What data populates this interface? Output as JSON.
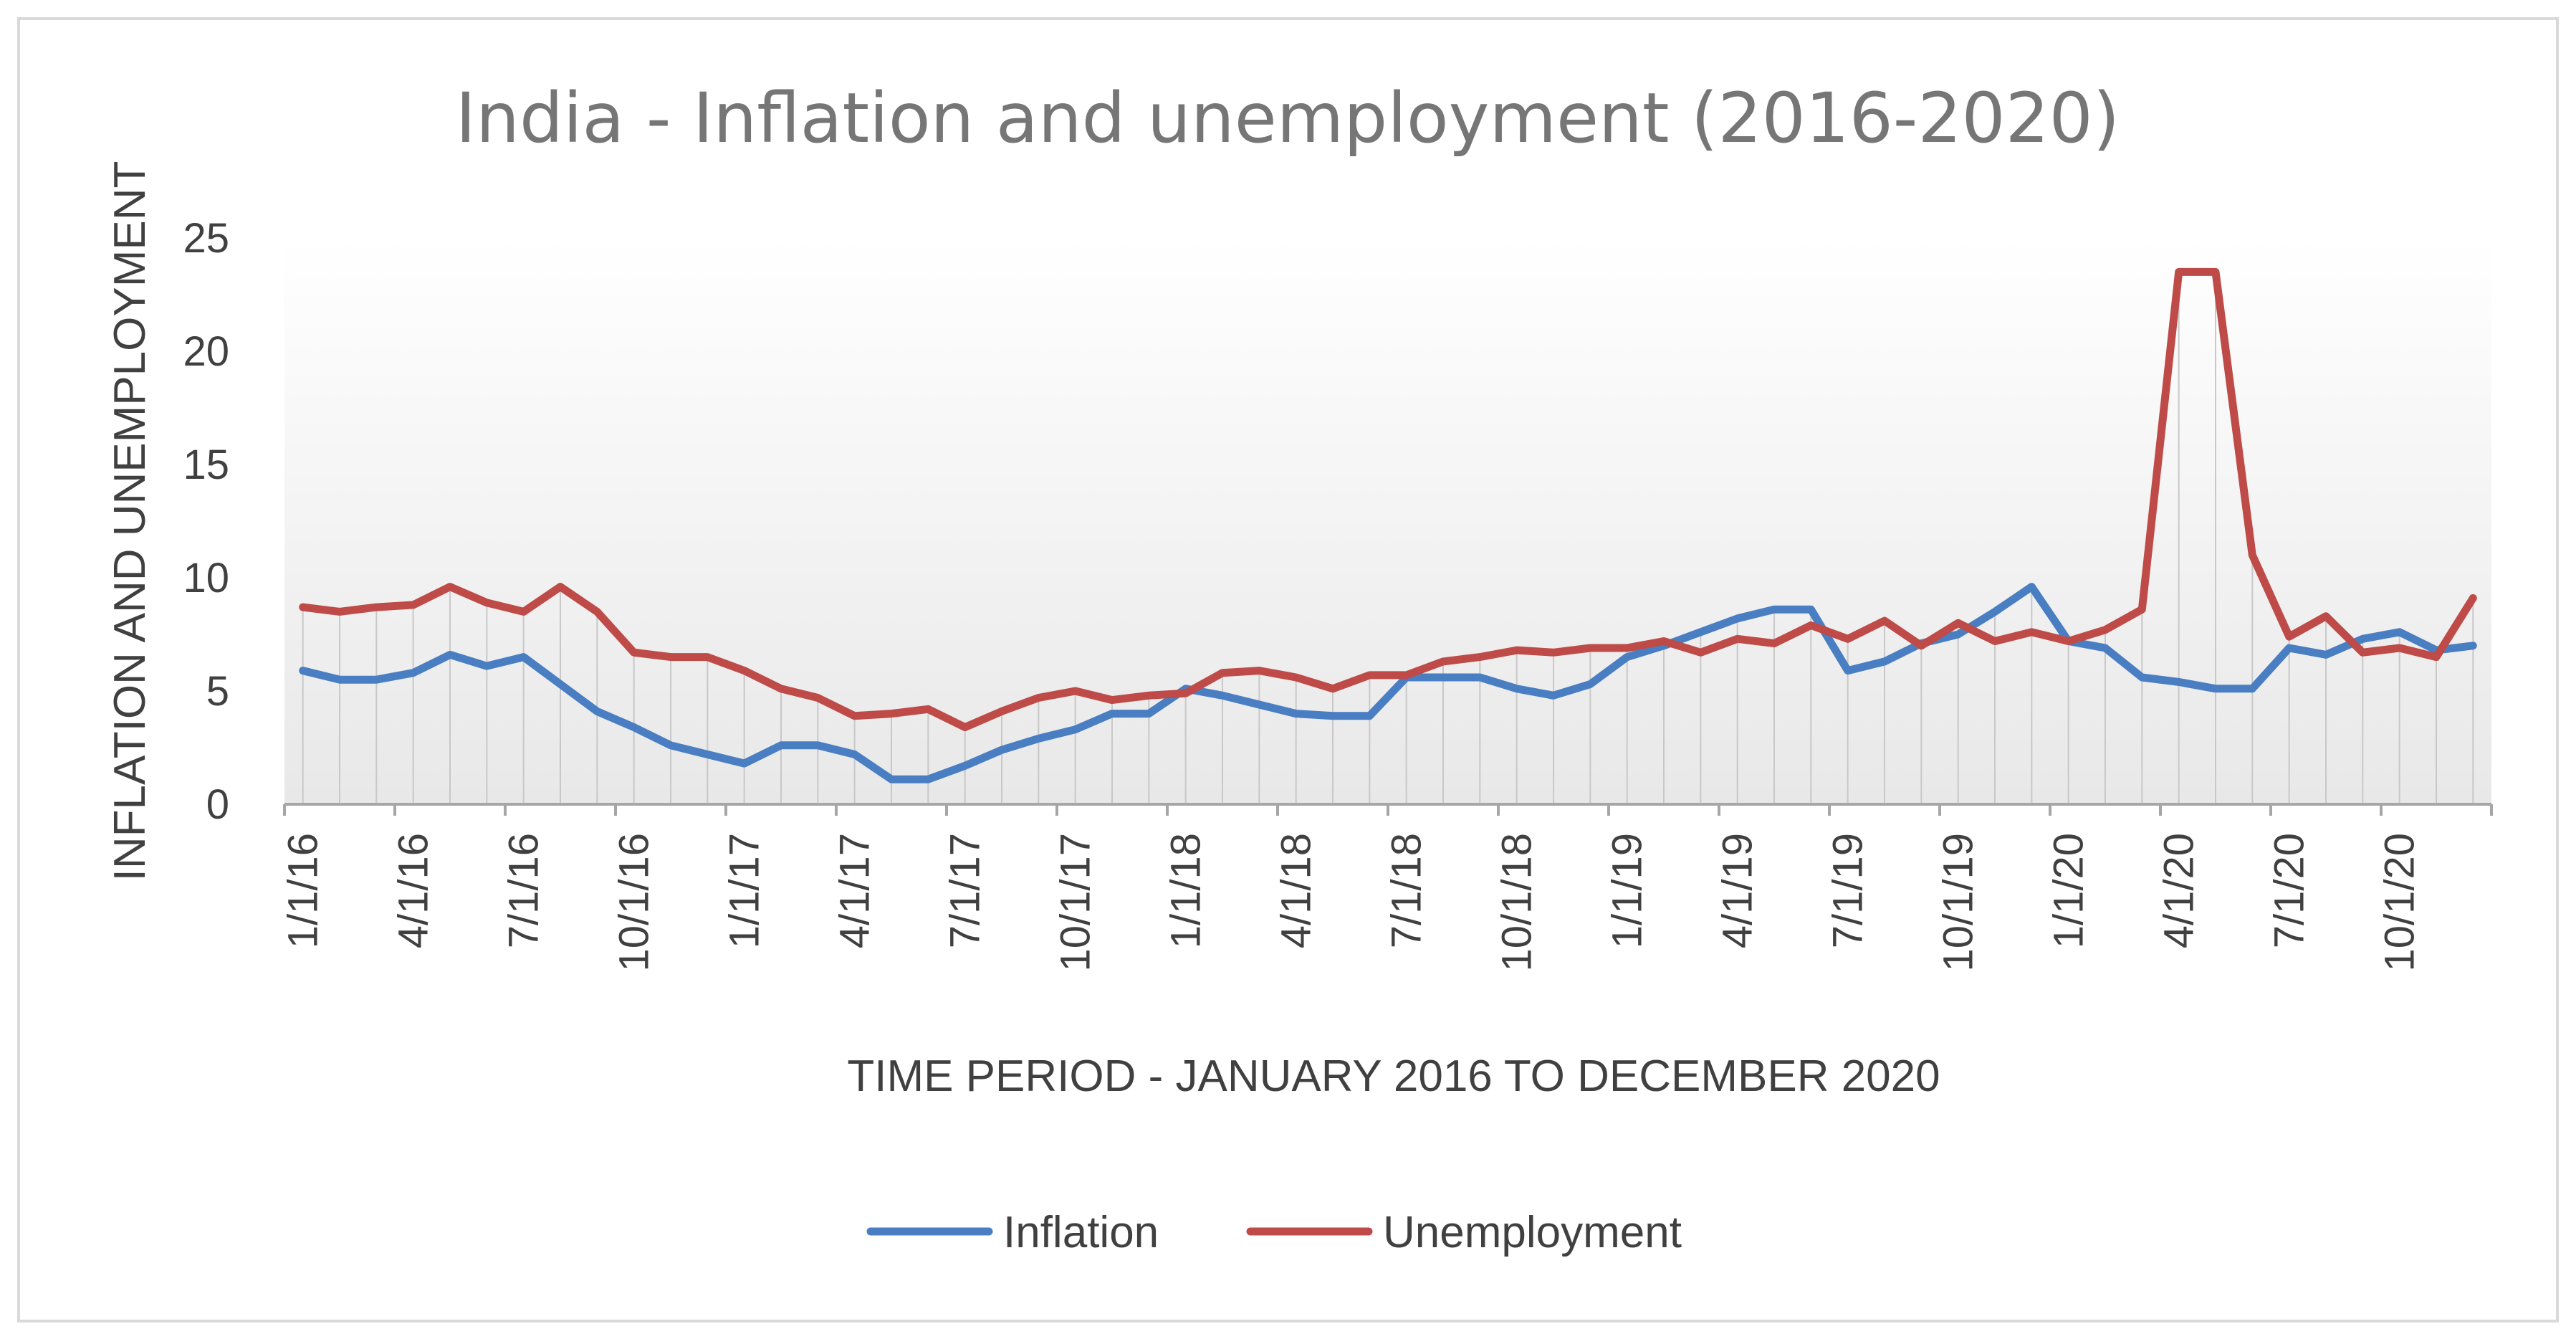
{
  "chart_data": {
    "type": "line",
    "title": "India - Inflation and unemployment  (2016-2020)",
    "xlabel": "TIME PERIOD - JANUARY 2016 TO DECEMBER 2020",
    "ylabel": "INFLATION AND UNEMPLOYMENT",
    "ylim": [
      0,
      25
    ],
    "yticks": [
      "0",
      "5",
      "10",
      "15",
      "20",
      "25"
    ],
    "xtick_labels": [
      "1/1/16",
      "4/1/16",
      "7/1/16",
      "10/1/16",
      "1/1/17",
      "4/1/17",
      "7/1/17",
      "10/1/17",
      "1/1/18",
      "4/1/18",
      "7/1/18",
      "10/1/18",
      "1/1/19",
      "4/1/19",
      "7/1/19",
      "10/1/19",
      "1/1/20",
      "4/1/20",
      "7/1/20",
      "10/1/20"
    ],
    "x_start": "2016-01",
    "x_count": 60,
    "grid": "vertical drop lines",
    "legend_position": "bottom",
    "series": [
      {
        "name": "Inflation",
        "color": "#4a7ec2",
        "values": [
          5.9,
          5.5,
          5.5,
          5.8,
          6.6,
          6.1,
          6.5,
          5.3,
          4.1,
          3.4,
          2.6,
          2.2,
          1.8,
          2.6,
          2.6,
          2.2,
          1.1,
          1.1,
          1.7,
          2.4,
          2.9,
          3.3,
          4.0,
          4.0,
          5.1,
          4.8,
          4.4,
          4.0,
          3.9,
          3.9,
          5.6,
          5.6,
          5.6,
          5.1,
          4.8,
          5.3,
          6.5,
          7.0,
          7.6,
          8.2,
          8.6,
          8.6,
          5.9,
          6.3,
          7.1,
          7.5,
          8.5,
          9.6,
          7.2,
          6.9,
          5.6,
          5.4,
          5.1,
          5.1,
          6.9,
          6.6,
          7.3,
          7.6,
          6.8,
          7.0
        ]
      },
      {
        "name": "Unemployment",
        "color": "#be4b48",
        "values": [
          8.7,
          8.5,
          8.7,
          8.8,
          9.6,
          8.9,
          8.5,
          9.6,
          8.5,
          6.7,
          6.5,
          6.5,
          5.9,
          5.1,
          4.7,
          3.9,
          4.0,
          4.2,
          3.4,
          4.1,
          4.7,
          5.0,
          4.6,
          4.8,
          4.9,
          5.8,
          5.9,
          5.6,
          5.1,
          5.7,
          5.7,
          6.3,
          6.5,
          6.8,
          6.7,
          6.9,
          6.9,
          7.2,
          6.7,
          7.3,
          7.1,
          7.9,
          7.3,
          8.1,
          7.0,
          8.0,
          7.2,
          7.6,
          7.2,
          7.7,
          8.6,
          23.5,
          23.5,
          11.0,
          7.4,
          8.3,
          6.7,
          6.9,
          6.5,
          9.1
        ]
      }
    ]
  }
}
